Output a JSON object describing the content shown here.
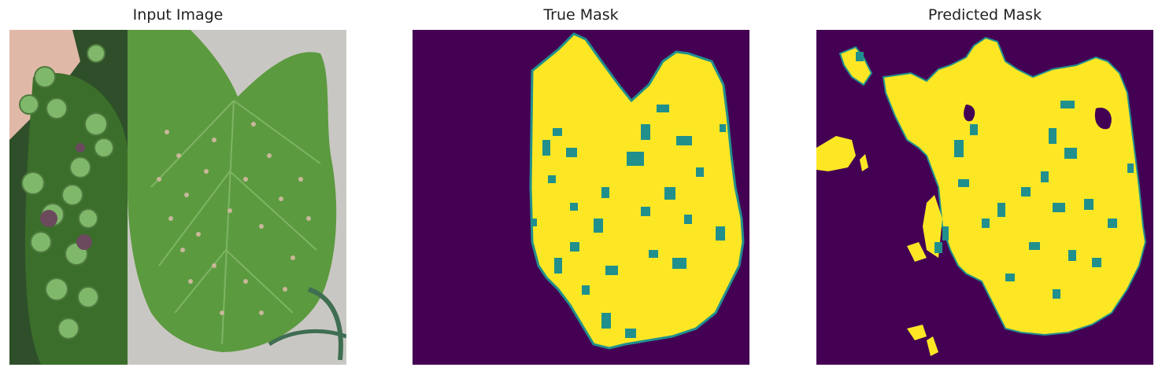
{
  "panels": [
    {
      "title": "Input Image"
    },
    {
      "title": "True Mask"
    },
    {
      "title": "Predicted Mask"
    }
  ],
  "colors": {
    "background_class": "#440154",
    "border_class": "#21908d",
    "leaf_class": "#fde725",
    "leaf_green_light": "#5c9a3f",
    "leaf_green_dark": "#3b6e2a",
    "grape_green": "#7fb86a",
    "grape_purple": "#6b4a5e",
    "lesion_tan": "#c9b79a",
    "floor_gray": "#c9c7c3",
    "skin_tone": "#e0b8a8"
  }
}
